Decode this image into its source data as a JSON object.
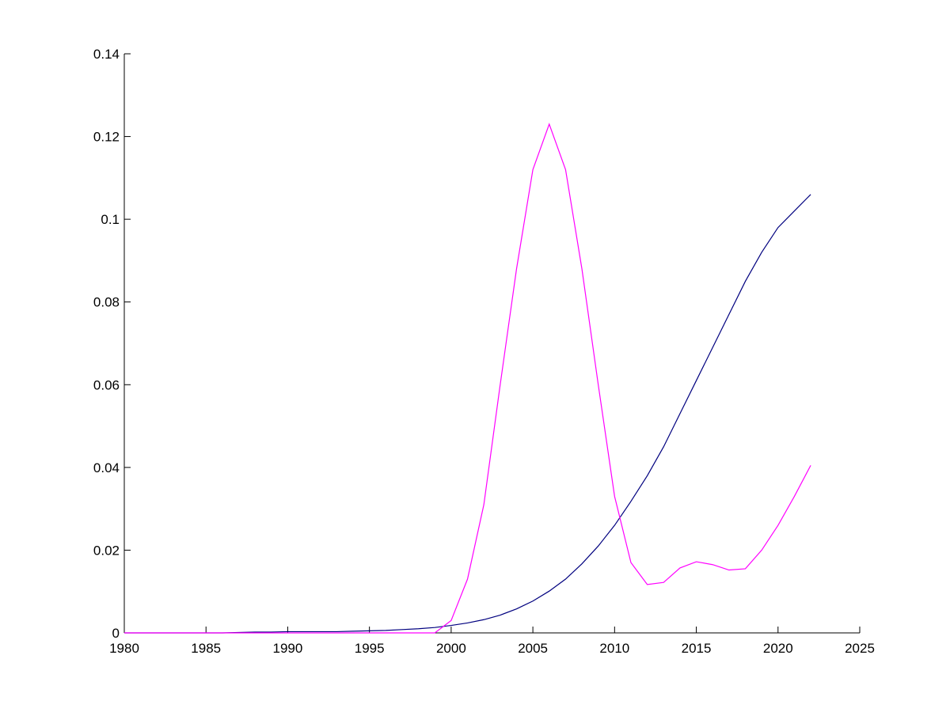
{
  "chart_data": {
    "type": "line",
    "x": [
      1980,
      1981,
      1982,
      1983,
      1984,
      1985,
      1986,
      1987,
      1988,
      1989,
      1990,
      1991,
      1992,
      1993,
      1994,
      1995,
      1996,
      1997,
      1998,
      1999,
      2000,
      2001,
      2002,
      2003,
      2004,
      2005,
      2006,
      2007,
      2008,
      2009,
      2010,
      2011,
      2012,
      2013,
      2014,
      2015,
      2016,
      2017,
      2018,
      2019,
      2020,
      2021,
      2022
    ],
    "series": [
      {
        "color": "#00007f",
        "values": [
          0,
          0,
          0,
          0,
          0,
          0,
          0,
          0.0001,
          0.0002,
          0.0002,
          0.0003,
          0.0003,
          0.0003,
          0.0003,
          0.0004,
          0.0005,
          0.0006,
          0.0008,
          0.001,
          0.0013,
          0.0018,
          0.0024,
          0.0032,
          0.0043,
          0.0058,
          0.0077,
          0.0101,
          0.013,
          0.0167,
          0.021,
          0.026,
          0.0318,
          0.038,
          0.045,
          0.053,
          0.061,
          0.069,
          0.077,
          0.085,
          0.092,
          0.098,
          0.102,
          0.106
        ]
      },
      {
        "color": "#ff00ff",
        "values": [
          0,
          0,
          0,
          0,
          0,
          0,
          0,
          0,
          0,
          0,
          0,
          0,
          0,
          0,
          0,
          0,
          0,
          0,
          0,
          0,
          0.003,
          0.013,
          0.031,
          0.06,
          0.088,
          0.112,
          0.123,
          0.112,
          0.088,
          0.06,
          0.033,
          0.017,
          0.0117,
          0.0122,
          0.0157,
          0.0172,
          0.0165,
          0.0152,
          0.0155,
          0.02,
          0.026,
          0.033,
          0.0405
        ]
      }
    ],
    "xlim": [
      1980,
      2025
    ],
    "xticks": [
      1980,
      1985,
      1990,
      1995,
      2000,
      2005,
      2010,
      2015,
      2020,
      2025
    ],
    "ylim": [
      0,
      0.14
    ],
    "yticks": [
      0,
      0.02,
      0.04,
      0.06,
      0.08,
      0.1,
      0.12,
      0.14
    ]
  }
}
